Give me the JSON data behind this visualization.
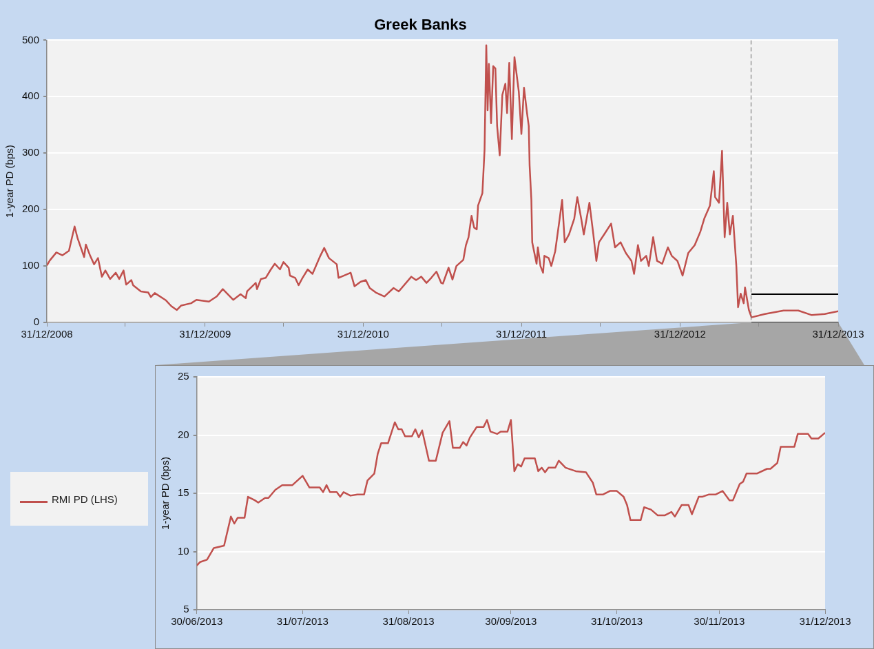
{
  "chart_data": [
    {
      "type": "line",
      "title": "Greek Banks",
      "ylabel": "1-year PD (bps)",
      "grid": "y",
      "xlim": [
        "2008-12-31",
        "2013-12-31"
      ],
      "xticks": [
        {
          "value": "2008-12-31",
          "label": "31/12/2008"
        },
        {
          "value": "2009-06-30",
          "label": null
        },
        {
          "value": "2009-12-31",
          "label": "31/12/2009"
        },
        {
          "value": "2010-06-30",
          "label": null
        },
        {
          "value": "2010-12-31",
          "label": "31/12/2010"
        },
        {
          "value": "2011-06-30",
          "label": null
        },
        {
          "value": "2011-12-31",
          "label": "31/12/2011"
        },
        {
          "value": "2012-06-30",
          "label": null
        },
        {
          "value": "2012-12-31",
          "label": "31/12/2012"
        },
        {
          "value": "2013-06-30",
          "label": null
        },
        {
          "value": "2013-12-31",
          "label": "31/12/2013"
        }
      ],
      "ylim": [
        0,
        500
      ],
      "yticks": [
        0,
        100,
        200,
        300,
        400,
        500
      ],
      "ref_lines": [
        {
          "axis": "x",
          "value": "2013-06-13",
          "color": "#808080",
          "line_style": "dashed"
        }
      ],
      "series": [
        {
          "color": "#c0504d",
          "x": [
            "2008-12-31",
            "2009-01-07",
            "2009-01-22",
            "2009-02-05",
            "2009-02-20",
            "2009-02-26",
            "2009-03-05",
            "2009-03-12",
            "2009-03-27",
            "2009-03-31",
            "2009-04-10",
            "2009-04-19",
            "2009-04-28",
            "2009-05-07",
            "2009-05-15",
            "2009-05-26",
            "2009-06-08",
            "2009-06-16",
            "2009-06-26",
            "2009-07-02",
            "2009-07-14",
            "2009-07-18",
            "2009-08-05",
            "2009-08-22",
            "2009-08-28",
            "2009-09-06",
            "2009-10-02",
            "2009-10-14",
            "2009-10-27",
            "2009-11-06",
            "2009-11-29",
            "2009-12-11",
            "2010-01-09",
            "2010-01-27",
            "2010-02-10",
            "2010-03-06",
            "2010-03-23",
            "2010-04-04",
            "2010-04-07",
            "2010-04-27",
            "2010-04-30",
            "2010-05-09",
            "2010-05-20",
            "2010-06-01",
            "2010-06-10",
            "2010-06-22",
            "2010-06-30",
            "2010-07-12",
            "2010-07-15",
            "2010-07-27",
            "2010-08-04",
            "2010-08-13",
            "2010-08-25",
            "2010-09-05",
            "2010-09-23",
            "2010-10-02",
            "2010-10-13",
            "2010-10-31",
            "2010-11-04",
            "2010-12-02",
            "2010-12-11",
            "2010-12-25",
            "2011-01-06",
            "2011-01-15",
            "2011-01-29",
            "2011-02-18",
            "2011-03-11",
            "2011-03-23",
            "2011-04-21",
            "2011-05-02",
            "2011-05-14",
            "2011-05-26",
            "2011-06-06",
            "2011-06-18",
            "2011-06-29",
            "2011-07-03",
            "2011-07-16",
            "2011-07-25",
            "2011-08-03",
            "2011-08-19",
            "2011-08-25",
            "2011-08-31",
            "2011-09-07",
            "2011-09-13",
            "2011-09-19",
            "2011-09-22",
            "2011-10-02",
            "2011-10-07",
            "2011-10-11",
            "2011-10-14",
            "2011-10-17",
            "2011-10-22",
            "2011-10-27",
            "2011-11-01",
            "2011-11-05",
            "2011-11-11",
            "2011-11-17",
            "2011-11-24",
            "2011-11-28",
            "2011-12-03",
            "2011-12-09",
            "2011-12-15",
            "2011-12-25",
            "2011-12-31",
            "2012-01-06",
            "2012-01-13",
            "2012-01-17",
            "2012-01-19",
            "2012-01-23",
            "2012-01-25",
            "2012-02-04",
            "2012-02-07",
            "2012-02-13",
            "2012-02-19",
            "2012-02-22",
            "2012-03-03",
            "2012-03-09",
            "2012-03-18",
            "2012-03-28",
            "2012-04-03",
            "2012-04-09",
            "2012-04-19",
            "2012-05-01",
            "2012-05-08",
            "2012-05-17",
            "2012-05-23",
            "2012-06-05",
            "2012-06-14",
            "2012-06-21",
            "2012-06-27",
            "2012-07-09",
            "2012-07-25",
            "2012-08-03",
            "2012-08-16",
            "2012-08-28",
            "2012-09-10",
            "2012-09-16",
            "2012-09-25",
            "2012-10-02",
            "2012-10-14",
            "2012-10-20",
            "2012-10-30",
            "2012-11-08",
            "2012-11-20",
            "2012-12-03",
            "2012-12-12",
            "2012-12-25",
            "2013-01-06",
            "2013-01-19",
            "2013-02-03",
            "2013-02-16",
            "2013-02-25",
            "2013-03-10",
            "2013-03-19",
            "2013-03-22",
            "2013-03-31",
            "2013-04-07",
            "2013-04-13",
            "2013-04-19",
            "2013-04-25",
            "2013-05-02",
            "2013-05-10",
            "2013-05-14",
            "2013-05-20",
            "2013-05-27",
            "2013-05-30",
            "2013-06-08",
            "2013-06-14",
            "2013-07-15",
            "2013-08-27",
            "2013-09-30",
            "2013-10-31",
            "2013-11-30",
            "2013-12-31"
          ],
          "values": [
            101,
            110,
            124,
            119,
            127,
            147,
            170,
            149,
            116,
            138,
            118,
            103,
            114,
            81,
            92,
            77,
            88,
            77,
            92,
            67,
            75,
            66,
            55,
            53,
            45,
            52,
            39,
            29,
            22,
            30,
            34,
            40,
            37,
            46,
            59,
            40,
            50,
            43,
            55,
            70,
            59,
            77,
            79,
            94,
            104,
            94,
            107,
            97,
            83,
            79,
            66,
            79,
            94,
            86,
            118,
            132,
            114,
            103,
            79,
            88,
            64,
            72,
            75,
            61,
            53,
            46,
            61,
            55,
            81,
            75,
            81,
            70,
            79,
            90,
            70,
            69,
            97,
            76,
            100,
            111,
            137,
            151,
            189,
            168,
            165,
            207,
            229,
            306,
            491,
            376,
            458,
            353,
            454,
            450,
            348,
            296,
            403,
            423,
            371,
            460,
            325,
            470,
            409,
            334,
            416,
            371,
            348,
            278,
            217,
            142,
            104,
            133,
            100,
            88,
            118,
            114,
            100,
            126,
            182,
            217,
            142,
            156,
            184,
            222,
            184,
            156,
            212,
            156,
            109,
            142,
            156,
            175,
            133,
            142,
            123,
            109,
            86,
            137,
            109,
            118,
            100,
            151,
            109,
            104,
            133,
            118,
            109,
            83,
            123,
            137,
            161,
            184,
            207,
            268,
            222,
            212,
            304,
            151,
            212,
            156,
            189,
            100,
            27,
            51,
            34,
            62,
            22,
            9,
            15,
            21,
            21,
            13,
            15,
            20
          ]
        }
      ]
    },
    {
      "type": "line",
      "ylabel": "1-year PD (bps)",
      "grid": "y",
      "legend": "left",
      "xlim": [
        "2013-06-30",
        "2013-12-31"
      ],
      "xticks": [
        {
          "value": "2013-06-30",
          "label": "30/06/2013"
        },
        {
          "value": "2013-07-31",
          "label": "31/07/2013"
        },
        {
          "value": "2013-08-31",
          "label": "31/08/2013"
        },
        {
          "value": "2013-09-30",
          "label": "30/09/2013"
        },
        {
          "value": "2013-10-31",
          "label": "31/10/2013"
        },
        {
          "value": "2013-11-30",
          "label": "30/11/2013"
        },
        {
          "value": "2013-12-31",
          "label": "31/12/2013"
        }
      ],
      "ylim": [
        5,
        25
      ],
      "yticks": [
        5,
        10,
        15,
        20,
        25
      ],
      "series": [
        {
          "name": "RMI PD (LHS)",
          "color": "#c0504d",
          "x": [
            "2013-06-30",
            "2013-07-01",
            "2013-07-03",
            "2013-07-05",
            "2013-07-08",
            "2013-07-10",
            "2013-07-11",
            "2013-07-12",
            "2013-07-14",
            "2013-07-15",
            "2013-07-17",
            "2013-07-18",
            "2013-07-20",
            "2013-07-21",
            "2013-07-23",
            "2013-07-25",
            "2013-07-28",
            "2013-07-31",
            "2013-08-02",
            "2013-08-05",
            "2013-08-06",
            "2013-08-07",
            "2013-08-08",
            "2013-08-10",
            "2013-08-11",
            "2013-08-12",
            "2013-08-14",
            "2013-08-16",
            "2013-08-18",
            "2013-08-19",
            "2013-08-21",
            "2013-08-22",
            "2013-08-23",
            "2013-08-25",
            "2013-08-27",
            "2013-08-28",
            "2013-08-29",
            "2013-08-30",
            "2013-09-01",
            "2013-09-02",
            "2013-09-03",
            "2013-09-04",
            "2013-09-06",
            "2013-09-08",
            "2013-09-10",
            "2013-09-12",
            "2013-09-13",
            "2013-09-15",
            "2013-09-16",
            "2013-09-17",
            "2013-09-18",
            "2013-09-20",
            "2013-09-22",
            "2013-09-23",
            "2013-09-24",
            "2013-09-26",
            "2013-09-27",
            "2013-09-29",
            "2013-09-30",
            "2013-10-01",
            "2013-10-02",
            "2013-10-03",
            "2013-10-04",
            "2013-10-07",
            "2013-10-08",
            "2013-10-09",
            "2013-10-10",
            "2013-10-11",
            "2013-10-13",
            "2013-10-14",
            "2013-10-16",
            "2013-10-19",
            "2013-10-22",
            "2013-10-24",
            "2013-10-25",
            "2013-10-27",
            "2013-10-29",
            "2013-10-31",
            "2013-11-02",
            "2013-11-03",
            "2013-11-04",
            "2013-11-07",
            "2013-11-08",
            "2013-11-10",
            "2013-11-12",
            "2013-11-14",
            "2013-11-16",
            "2013-11-17",
            "2013-11-19",
            "2013-11-21",
            "2013-11-22",
            "2013-11-24",
            "2013-11-25",
            "2013-11-27",
            "2013-11-29",
            "2013-12-01",
            "2013-12-03",
            "2013-12-04",
            "2013-12-06",
            "2013-12-07",
            "2013-12-08",
            "2013-12-11",
            "2013-12-14",
            "2013-12-15",
            "2013-12-17",
            "2013-12-18",
            "2013-12-22",
            "2013-12-23",
            "2013-12-26",
            "2013-12-27",
            "2013-12-29",
            "2013-12-31"
          ],
          "values": [
            8.8,
            9.1,
            9.3,
            10.3,
            10.5,
            13.0,
            12.4,
            12.9,
            12.9,
            14.7,
            14.4,
            14.2,
            14.6,
            14.6,
            15.3,
            15.7,
            15.7,
            16.5,
            15.5,
            15.5,
            15.1,
            15.7,
            15.1,
            15.1,
            14.7,
            15.1,
            14.8,
            14.9,
            14.9,
            16.1,
            16.7,
            18.4,
            19.3,
            19.3,
            21.1,
            20.5,
            20.5,
            19.9,
            19.9,
            20.5,
            19.8,
            20.4,
            17.8,
            17.8,
            20.2,
            21.2,
            18.9,
            18.9,
            19.4,
            19.1,
            19.8,
            20.7,
            20.7,
            21.3,
            20.3,
            20.1,
            20.3,
            20.3,
            21.3,
            16.9,
            17.5,
            17.3,
            18.0,
            18.0,
            16.9,
            17.2,
            16.8,
            17.2,
            17.2,
            17.8,
            17.2,
            16.9,
            16.8,
            15.9,
            14.9,
            14.9,
            15.2,
            15.2,
            14.7,
            14.0,
            12.7,
            12.7,
            13.8,
            13.6,
            13.1,
            13.1,
            13.4,
            13.0,
            14.0,
            14.0,
            13.2,
            14.7,
            14.7,
            14.9,
            14.9,
            15.2,
            14.4,
            14.4,
            15.8,
            16.0,
            16.7,
            16.7,
            17.1,
            17.1,
            17.6,
            19.0,
            19.0,
            20.1,
            20.1,
            19.7,
            19.7,
            20.2
          ]
        }
      ]
    }
  ]
}
